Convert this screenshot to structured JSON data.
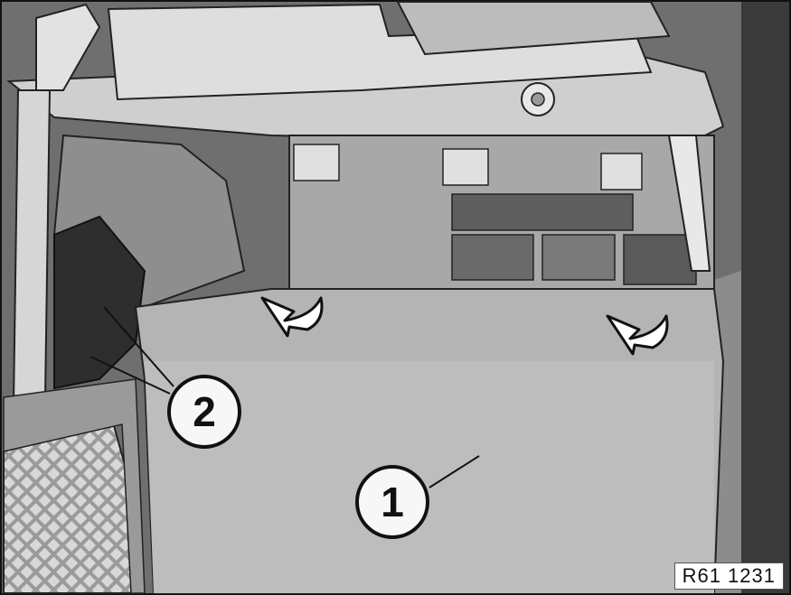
{
  "figure": {
    "reference_code": "R61 1231",
    "callouts": [
      {
        "id": "1",
        "label": "1"
      },
      {
        "id": "2",
        "label": "2"
      }
    ],
    "icons": [
      "rotate-arrow-icon",
      "rotate-arrow-icon"
    ]
  }
}
